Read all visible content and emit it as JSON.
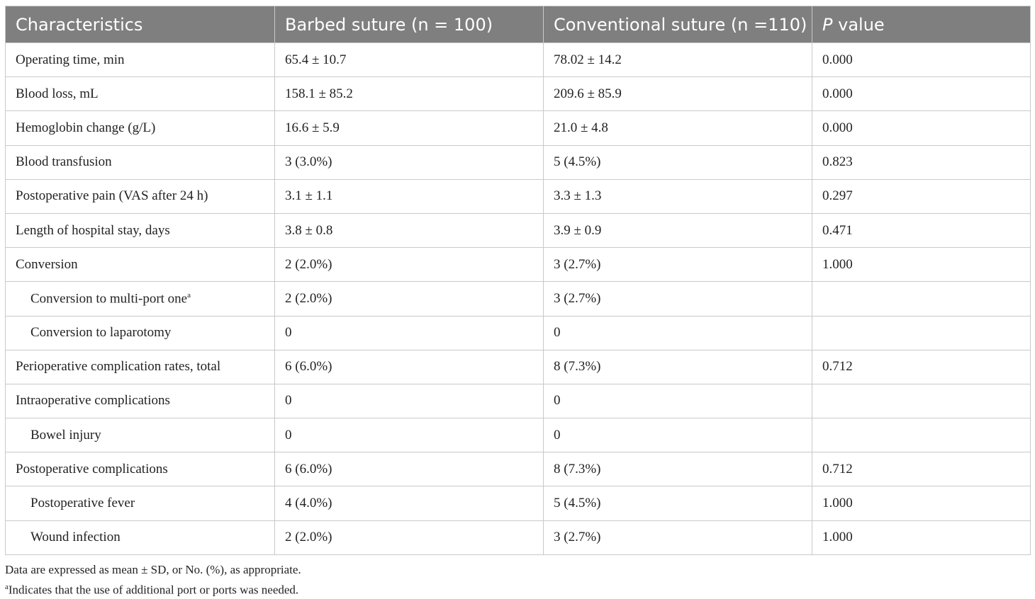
{
  "table": {
    "header": [
      "Characteristics",
      "Barbed suture (n = 100)",
      "Conventional suture (n =110)",
      [
        "P",
        " value"
      ]
    ],
    "rows": [
      [
        "Operating time, min",
        "65.4 ± 10.7",
        "78.02 ± 14.2",
        "0.000"
      ],
      [
        "Blood loss, mL",
        "158.1 ± 85.2",
        "209.6 ± 85.9",
        "0.000"
      ],
      [
        "Hemoglobin change (g/L)",
        "16.6 ± 5.9",
        "21.0 ± 4.8",
        "0.000"
      ],
      [
        "Blood transfusion",
        "3 (3.0%)",
        "5 (4.5%)",
        "0.823"
      ],
      [
        "Postoperative pain (VAS after 24 h)",
        "3.1 ± 1.1",
        "3.3 ± 1.3",
        "0.297"
      ],
      [
        "Length of hospital stay, days",
        "3.8 ± 0.8",
        "3.9 ± 0.9",
        "0.471"
      ],
      [
        "Conversion",
        "2 (2.0%)",
        "3 (2.7%)",
        "1.000"
      ],
      [
        [
          "Conversion to multi-port one",
          "a"
        ],
        "2 (2.0%)",
        "3 (2.7%)"
      ],
      [
        "Conversion to laparotomy",
        "0",
        "0"
      ],
      [
        "Perioperative complication rates, total",
        "6 (6.0%)",
        "8 (7.3%)",
        "0.712"
      ],
      [
        "Intraoperative complications",
        "0",
        "0"
      ],
      [
        "Bowel injury",
        "0",
        "0"
      ],
      [
        "Postoperative complications",
        "6 (6.0%)",
        "8 (7.3%)",
        "0.712"
      ],
      [
        "Postoperative fever",
        "4 (4.0%)",
        "5 (4.5%)",
        "1.000"
      ],
      [
        "Wound infection",
        "2 (2.0%)",
        "3 (2.7%)",
        "1.000"
      ]
    ],
    "footnotes": [
      [
        "Data are expressed as mean ± SD, or No. (%), as appropriate."
      ],
      [
        "a",
        "Indicates that the use of additional port or ports was needed."
      ]
    ]
  }
}
